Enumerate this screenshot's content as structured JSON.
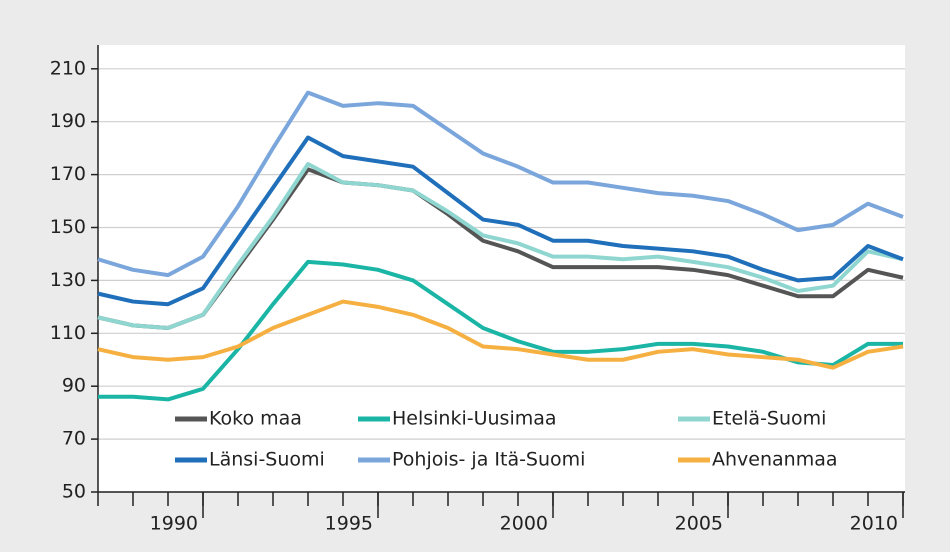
{
  "chart_data": {
    "type": "line",
    "x": [
      1987,
      1988,
      1989,
      1990,
      1991,
      1992,
      1993,
      1994,
      1995,
      1996,
      1997,
      1998,
      1999,
      2000,
      2001,
      2002,
      2003,
      2004,
      2005,
      2006,
      2007,
      2008,
      2009,
      2010
    ],
    "series": [
      {
        "name": "Koko maa",
        "color": "#555555",
        "values": [
          116,
          113,
          112,
          117,
          135,
          153,
          172,
          167,
          166,
          164,
          155,
          145,
          141,
          135,
          135,
          135,
          135,
          134,
          132,
          128,
          124,
          124,
          134,
          131
        ]
      },
      {
        "name": "Helsinki-Uusimaa",
        "color": "#1ab5a5",
        "values": [
          86,
          86,
          85,
          89,
          104,
          121,
          137,
          136,
          134,
          130,
          121,
          112,
          107,
          103,
          103,
          104,
          106,
          106,
          105,
          103,
          99,
          98,
          106,
          106
        ]
      },
      {
        "name": "Etelä-Suomi",
        "color": "#8fd6d0",
        "values": [
          116,
          113,
          112,
          117,
          136,
          154,
          174,
          167,
          166,
          164,
          156,
          147,
          144,
          139,
          139,
          138,
          139,
          137,
          135,
          131,
          126,
          128,
          141,
          138
        ]
      },
      {
        "name": "Länsi-Suomi",
        "color": "#1f6fba",
        "values": [
          125,
          122,
          121,
          127,
          146,
          165,
          184,
          177,
          175,
          173,
          163,
          153,
          151,
          145,
          145,
          143,
          142,
          141,
          139,
          134,
          130,
          131,
          143,
          138
        ]
      },
      {
        "name": "Pohjois- ja Itä-Suomi",
        "color": "#7aa6dc",
        "values": [
          138,
          134,
          132,
          139,
          158,
          180,
          201,
          196,
          197,
          196,
          187,
          178,
          173,
          167,
          167,
          165,
          163,
          162,
          160,
          155,
          149,
          151,
          159,
          154
        ]
      },
      {
        "name": "Ahvenanmaa",
        "color": "#f5b041",
        "values": [
          104,
          101,
          100,
          101,
          105,
          112,
          117,
          122,
          120,
          117,
          112,
          105,
          104,
          102,
          100,
          100,
          103,
          104,
          102,
          101,
          100,
          97,
          103,
          105
        ]
      }
    ],
    "xlim": [
      1987,
      2010
    ],
    "xticks": [
      1990,
      1995,
      2000,
      2005,
      2010
    ],
    "xminor_ticks": [
      1987,
      1988,
      1989,
      1990,
      1991,
      1992,
      1993,
      1994,
      1995,
      1996,
      1997,
      1998,
      1999,
      2000,
      2001,
      2002,
      2003,
      2004,
      2005,
      2006,
      2007,
      2008,
      2009,
      2010
    ],
    "ylim": [
      50,
      219
    ],
    "yticks": [
      50,
      70,
      90,
      110,
      130,
      150,
      170,
      190,
      210
    ],
    "grid": true
  }
}
